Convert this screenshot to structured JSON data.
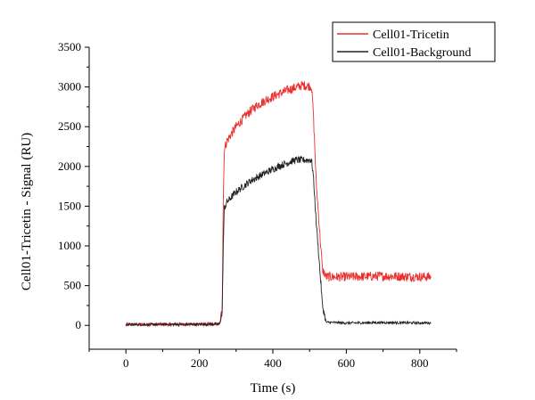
{
  "chart_data": {
    "type": "line",
    "xlabel": "Time (s)",
    "ylabel": "Cell01-Tricetin - Signal (RU)",
    "xlim": [
      -100,
      900
    ],
    "ylim": [
      -300,
      3500
    ],
    "x_ticks": [
      0,
      200,
      400,
      600,
      800
    ],
    "y_ticks": [
      0,
      500,
      1000,
      1500,
      2000,
      2500,
      3000,
      3500
    ],
    "x_tick_labels": [
      "0",
      "200",
      "400",
      "600",
      "800"
    ],
    "y_tick_labels": [
      "0",
      "500",
      "1000",
      "1500",
      "2000",
      "2500",
      "3000",
      "3500"
    ],
    "legend_position": "top-right",
    "series": [
      {
        "name": "Cell01-Tricetin",
        "color": "#e8312f",
        "noise": 60,
        "points": [
          [
            0,
            10
          ],
          [
            255,
            15
          ],
          [
            262,
            200
          ],
          [
            265,
            1600
          ],
          [
            268,
            2220
          ],
          [
            275,
            2320
          ],
          [
            300,
            2500
          ],
          [
            330,
            2660
          ],
          [
            360,
            2780
          ],
          [
            400,
            2880
          ],
          [
            440,
            2960
          ],
          [
            480,
            3020
          ],
          [
            505,
            3010
          ],
          [
            510,
            2700
          ],
          [
            518,
            1800
          ],
          [
            528,
            1150
          ],
          [
            535,
            700
          ],
          [
            545,
            610
          ],
          [
            600,
            610
          ],
          [
            700,
            620
          ],
          [
            830,
            610
          ]
        ]
      },
      {
        "name": "Cell01-Background",
        "color": "#222222",
        "noise": 45,
        "points": [
          [
            0,
            10
          ],
          [
            255,
            15
          ],
          [
            262,
            150
          ],
          [
            265,
            1000
          ],
          [
            268,
            1480
          ],
          [
            275,
            1550
          ],
          [
            300,
            1680
          ],
          [
            340,
            1820
          ],
          [
            380,
            1920
          ],
          [
            420,
            2010
          ],
          [
            460,
            2080
          ],
          [
            505,
            2080
          ],
          [
            510,
            1900
          ],
          [
            518,
            1300
          ],
          [
            528,
            700
          ],
          [
            535,
            250
          ],
          [
            545,
            40
          ],
          [
            600,
            30
          ],
          [
            700,
            35
          ],
          [
            830,
            30
          ]
        ]
      }
    ]
  }
}
